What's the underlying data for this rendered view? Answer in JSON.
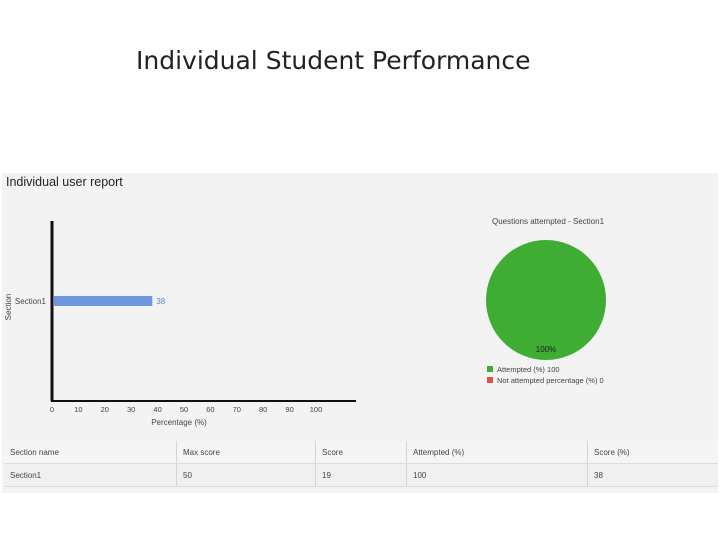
{
  "slide": {
    "title": "Individual Student Performance"
  },
  "report": {
    "title": "Individual user report"
  },
  "colors": {
    "bar": "#6f97e0",
    "attempted": "#3fac34",
    "not_attempted": "#d9534f"
  },
  "chart_data": [
    {
      "type": "bar",
      "orientation": "horizontal",
      "categories": [
        "Section1"
      ],
      "series": [
        {
          "values": [
            38
          ]
        }
      ],
      "data_labels": [
        "38"
      ],
      "xlabel": "Percentage (%)",
      "ylabel": "Section",
      "xlim": [
        0,
        100
      ],
      "xticks": [
        0,
        10,
        20,
        30,
        40,
        50,
        60,
        70,
        80,
        90,
        100
      ],
      "grid": false
    },
    {
      "type": "pie",
      "title": "Questions attempted - Section1",
      "labels": [
        "Attempted (%) 100",
        "Not attempted percentage (%) 0"
      ],
      "values": [
        100,
        0
      ],
      "slice_label": "100%",
      "legend": "bottom"
    }
  ],
  "table": {
    "headers": [
      "Section name",
      "Max score",
      "Score",
      "Attempted (%)",
      "Score (%)"
    ],
    "rows": [
      [
        "Section1",
        "50",
        "19",
        "100",
        "38"
      ]
    ]
  }
}
